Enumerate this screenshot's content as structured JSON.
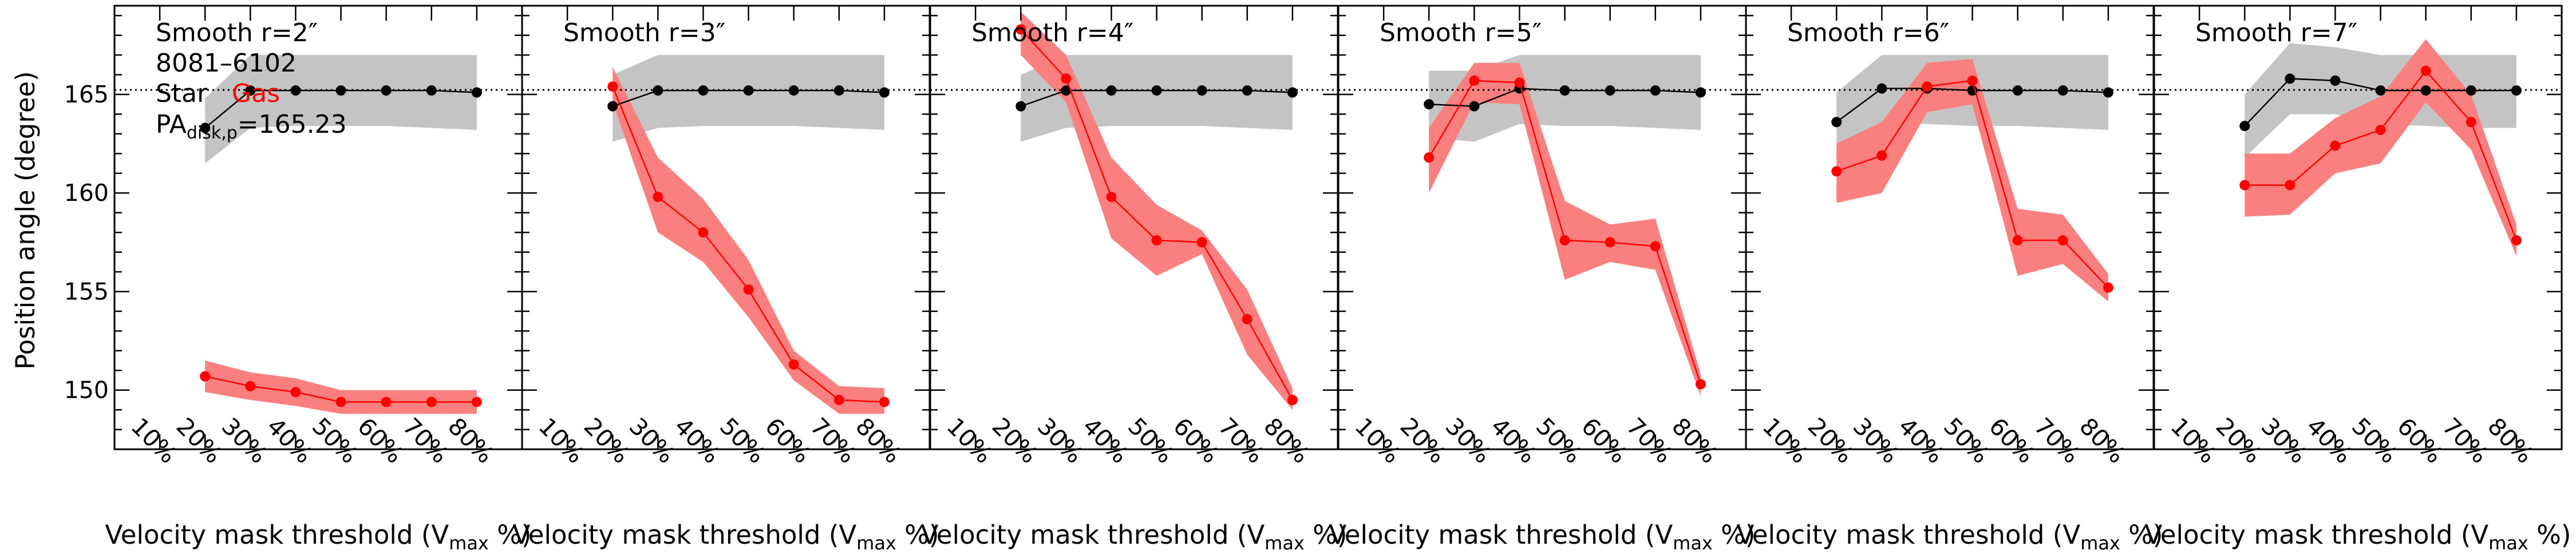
{
  "figure": {
    "ylabel": "Position angle (degree)",
    "xlabel_prefix": "Velocity mask threshold (V",
    "xlabel_sub": "max",
    "xlabel_suffix": " %)",
    "galaxy_id": "8081–6102",
    "legend_star": "Star",
    "legend_gas": "Gas",
    "pa_prefix": "PA",
    "pa_sub": "disk,p",
    "pa_value": "=165.23"
  },
  "colors": {
    "star": "#000000",
    "gas": "#ff0000",
    "star_band": "#c4c4c4",
    "gas_band": "#fa8080",
    "disk_line": "#000000"
  },
  "chart_data": [
    {
      "type": "line",
      "title": "Smooth r=2″",
      "categories": [
        "10%",
        "20%",
        "30%",
        "40%",
        "50%",
        "60%",
        "70%",
        "80%"
      ],
      "x": [
        10,
        20,
        30,
        40,
        50,
        60,
        70,
        80
      ],
      "xlim": [
        0,
        90
      ],
      "ylim": [
        147,
        169.5
      ],
      "yticks": [
        150,
        155,
        160,
        165
      ],
      "reference_line": 165.23,
      "series": [
        {
          "name": "Star",
          "x": [
            20,
            30,
            40,
            50,
            60,
            70,
            80
          ],
          "values": [
            163.3,
            165.2,
            165.2,
            165.2,
            165.2,
            165.2,
            165.1
          ],
          "band_lower": [
            161.5,
            163.3,
            163.4,
            163.4,
            163.4,
            163.3,
            163.2
          ],
          "band_upper": [
            164.8,
            167.0,
            167.0,
            167.0,
            167.0,
            167.0,
            167.0
          ]
        },
        {
          "name": "Gas",
          "x": [
            20,
            30,
            40,
            50,
            60,
            70,
            80
          ],
          "values": [
            150.7,
            150.2,
            149.9,
            149.4,
            149.4,
            149.4,
            149.4
          ],
          "band_lower": [
            149.9,
            149.5,
            149.2,
            148.8,
            148.8,
            148.8,
            148.8
          ],
          "band_upper": [
            151.5,
            150.9,
            150.6,
            150.0,
            150.0,
            150.0,
            150.0
          ]
        }
      ]
    },
    {
      "type": "line",
      "title": "Smooth r=3″",
      "categories": [
        "10%",
        "20%",
        "30%",
        "40%",
        "50%",
        "60%",
        "70%",
        "80%"
      ],
      "x": [
        10,
        20,
        30,
        40,
        50,
        60,
        70,
        80
      ],
      "xlim": [
        0,
        90
      ],
      "ylim": [
        147,
        169.5
      ],
      "reference_line": 165.23,
      "series": [
        {
          "name": "Star",
          "x": [
            20,
            30,
            40,
            50,
            60,
            70,
            80
          ],
          "values": [
            164.4,
            165.2,
            165.2,
            165.2,
            165.2,
            165.2,
            165.1
          ],
          "band_lower": [
            162.6,
            163.3,
            163.4,
            163.4,
            163.4,
            163.3,
            163.2
          ],
          "band_upper": [
            166.0,
            167.0,
            167.0,
            167.0,
            167.0,
            167.0,
            167.0
          ]
        },
        {
          "name": "Gas",
          "x": [
            20,
            30,
            40,
            50,
            60,
            70,
            80
          ],
          "values": [
            165.4,
            159.8,
            158.0,
            155.1,
            151.3,
            149.5,
            149.4
          ],
          "band_lower": [
            164.6,
            158.0,
            156.5,
            153.7,
            150.5,
            148.8,
            148.8
          ],
          "band_upper": [
            166.4,
            161.8,
            159.7,
            156.6,
            152.0,
            150.2,
            150.1
          ]
        }
      ]
    },
    {
      "type": "line",
      "title": "Smooth r=4″",
      "categories": [
        "10%",
        "20%",
        "30%",
        "40%",
        "50%",
        "60%",
        "70%",
        "80%"
      ],
      "x": [
        10,
        20,
        30,
        40,
        50,
        60,
        70,
        80
      ],
      "xlim": [
        0,
        90
      ],
      "ylim": [
        147,
        169.5
      ],
      "reference_line": 165.23,
      "series": [
        {
          "name": "Star",
          "x": [
            20,
            30,
            40,
            50,
            60,
            70,
            80
          ],
          "values": [
            164.4,
            165.2,
            165.2,
            165.2,
            165.2,
            165.2,
            165.1
          ],
          "band_lower": [
            162.6,
            163.3,
            163.4,
            163.4,
            163.4,
            163.3,
            163.2
          ],
          "band_upper": [
            166.0,
            167.0,
            167.0,
            167.0,
            167.0,
            167.0,
            167.0
          ]
        },
        {
          "name": "Gas",
          "x": [
            20,
            30,
            40,
            50,
            60,
            70,
            80
          ],
          "values": [
            168.3,
            165.8,
            159.8,
            157.6,
            157.5,
            153.6,
            149.5
          ],
          "band_lower": [
            167.0,
            164.6,
            157.7,
            155.8,
            156.9,
            151.8,
            149.0
          ],
          "band_upper": [
            169.2,
            167.0,
            161.8,
            159.4,
            158.1,
            155.1,
            150.1
          ]
        }
      ]
    },
    {
      "type": "line",
      "title": "Smooth r=5″",
      "categories": [
        "10%",
        "20%",
        "30%",
        "40%",
        "50%",
        "60%",
        "70%",
        "80%"
      ],
      "x": [
        10,
        20,
        30,
        40,
        50,
        60,
        70,
        80
      ],
      "xlim": [
        0,
        90
      ],
      "ylim": [
        147,
        169.5
      ],
      "reference_line": 165.23,
      "series": [
        {
          "name": "Star",
          "x": [
            20,
            30,
            40,
            50,
            60,
            70,
            80
          ],
          "values": [
            164.5,
            164.4,
            165.3,
            165.2,
            165.2,
            165.2,
            165.1
          ],
          "band_lower": [
            162.8,
            162.6,
            163.5,
            163.4,
            163.4,
            163.3,
            163.2
          ],
          "band_upper": [
            166.2,
            166.2,
            167.0,
            167.0,
            167.0,
            167.0,
            167.0
          ]
        },
        {
          "name": "Gas",
          "x": [
            20,
            30,
            40,
            50,
            60,
            70,
            80
          ],
          "values": [
            161.8,
            165.7,
            165.6,
            157.6,
            157.5,
            157.3,
            150.3
          ],
          "band_lower": [
            160.0,
            164.6,
            164.5,
            155.6,
            156.5,
            156.1,
            149.7
          ],
          "band_upper": [
            163.3,
            166.6,
            166.6,
            159.6,
            158.4,
            158.7,
            150.8
          ]
        }
      ]
    },
    {
      "type": "line",
      "title": "Smooth r=6″",
      "categories": [
        "10%",
        "20%",
        "30%",
        "40%",
        "50%",
        "60%",
        "70%",
        "80%"
      ],
      "x": [
        10,
        20,
        30,
        40,
        50,
        60,
        70,
        80
      ],
      "xlim": [
        0,
        90
      ],
      "ylim": [
        147,
        169.5
      ],
      "reference_line": 165.23,
      "series": [
        {
          "name": "Star",
          "x": [
            20,
            30,
            40,
            50,
            60,
            70,
            80
          ],
          "values": [
            163.6,
            165.3,
            165.3,
            165.2,
            165.2,
            165.2,
            165.1
          ],
          "band_lower": [
            162.0,
            163.5,
            163.5,
            163.4,
            163.4,
            163.3,
            163.2
          ],
          "band_upper": [
            165.1,
            167.0,
            167.0,
            167.0,
            167.0,
            167.0,
            167.0
          ]
        },
        {
          "name": "Gas",
          "x": [
            20,
            30,
            40,
            50,
            60,
            70,
            80
          ],
          "values": [
            161.1,
            161.9,
            165.4,
            165.7,
            157.6,
            157.6,
            155.2
          ],
          "band_lower": [
            159.5,
            160.0,
            164.1,
            164.5,
            155.8,
            156.4,
            154.5
          ],
          "band_upper": [
            162.5,
            163.6,
            166.6,
            166.8,
            159.2,
            158.9,
            155.9
          ]
        }
      ]
    },
    {
      "type": "line",
      "title": "Smooth r=7″",
      "categories": [
        "10%",
        "20%",
        "30%",
        "40%",
        "50%",
        "60%",
        "70%",
        "80%"
      ],
      "x": [
        10,
        20,
        30,
        40,
        50,
        60,
        70,
        80
      ],
      "xlim": [
        0,
        90
      ],
      "ylim": [
        147,
        169.5
      ],
      "reference_line": 165.23,
      "series": [
        {
          "name": "Star",
          "x": [
            20,
            30,
            40,
            50,
            60,
            70,
            80
          ],
          "values": [
            163.4,
            165.8,
            165.7,
            165.2,
            165.2,
            165.2,
            165.2
          ],
          "band_lower": [
            161.8,
            164.0,
            164.0,
            163.5,
            163.4,
            163.3,
            163.3
          ],
          "band_upper": [
            165.0,
            167.6,
            167.4,
            167.0,
            167.0,
            167.0,
            167.0
          ]
        },
        {
          "name": "Gas",
          "x": [
            20,
            30,
            40,
            50,
            60,
            70,
            80
          ],
          "values": [
            160.4,
            160.4,
            162.4,
            163.2,
            166.2,
            163.6,
            157.6
          ],
          "band_lower": [
            158.8,
            158.9,
            161.0,
            161.5,
            164.6,
            162.2,
            156.8
          ],
          "band_upper": [
            162.0,
            162.0,
            163.8,
            164.9,
            167.8,
            165.0,
            158.4
          ]
        }
      ]
    }
  ]
}
